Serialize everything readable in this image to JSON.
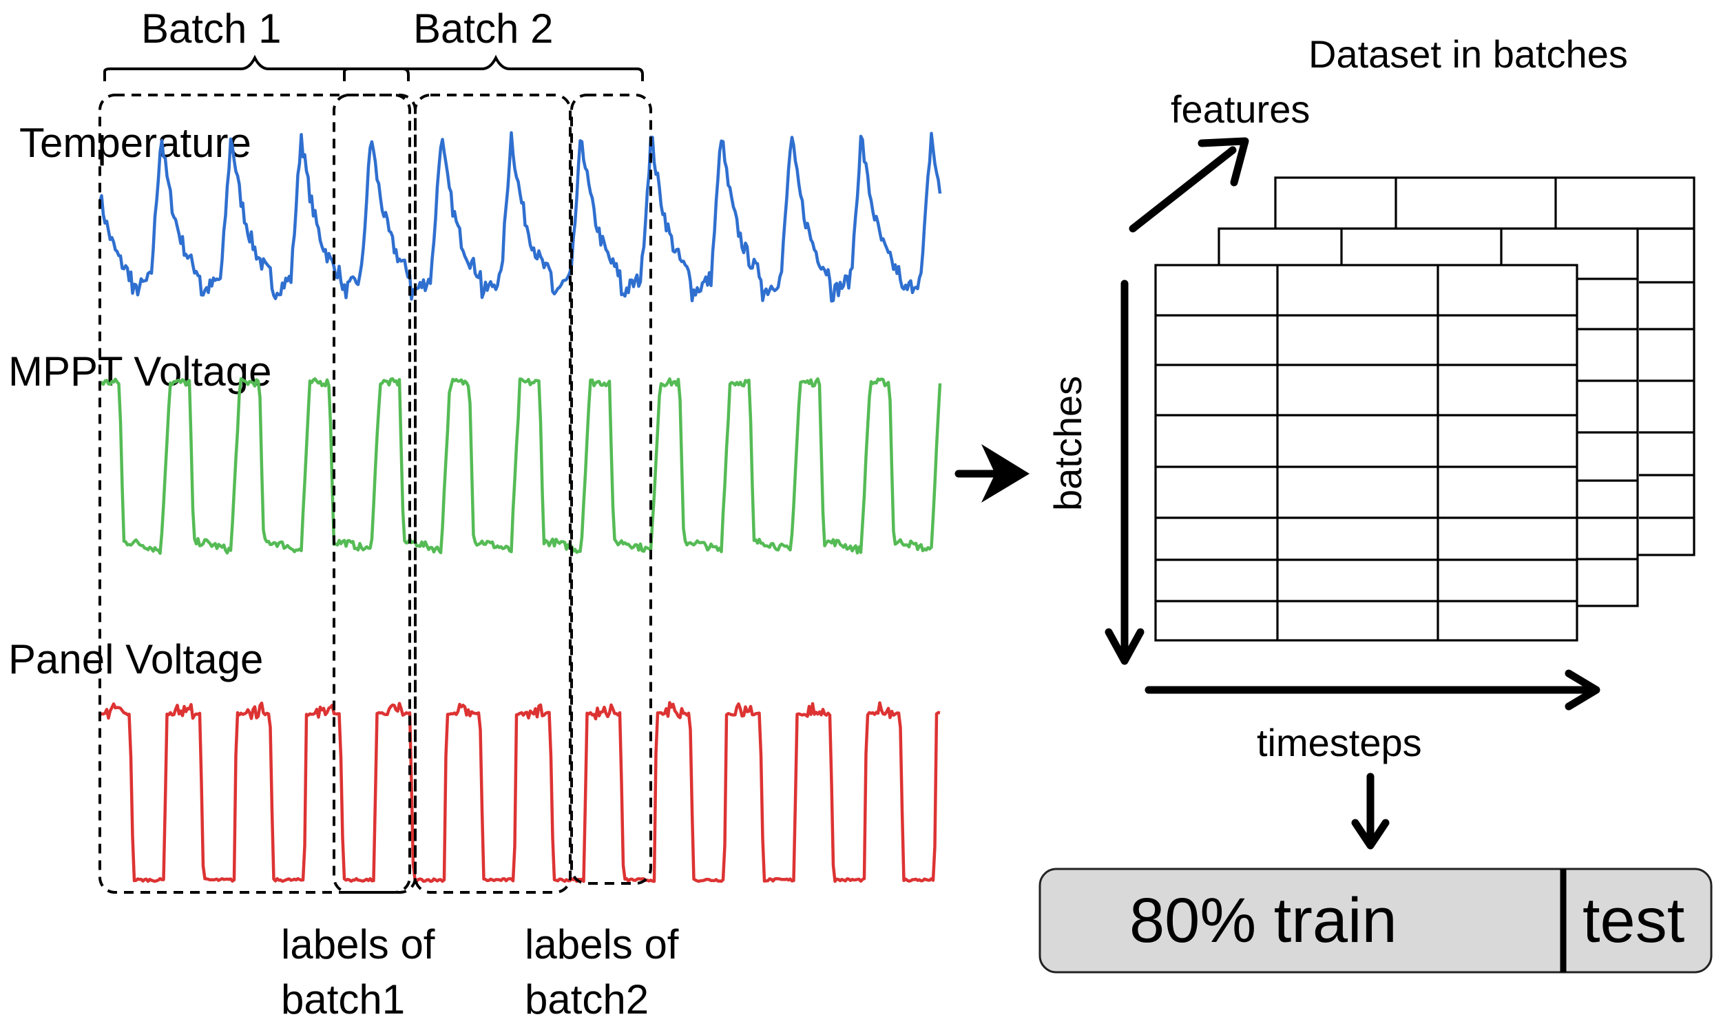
{
  "batch_labels": [
    "Batch 1",
    "Batch 2"
  ],
  "signals": [
    {
      "name": "Temperature",
      "color": "#2f6fcf"
    },
    {
      "name": "MPPT Voltage",
      "color": "#55bb55"
    },
    {
      "name": "Panel Voltage",
      "color": "#dd3333"
    }
  ],
  "labels_of_batch1": [
    "labels of",
    "batch1"
  ],
  "labels_of_batch2": [
    "labels of",
    "batch2"
  ],
  "dataset": {
    "title": "Dataset in batches",
    "features_label": "features",
    "batches_label": "batches",
    "timesteps_label": "timesteps"
  },
  "split": {
    "train_label": "80% train",
    "test_label": "test",
    "fill": "#d9d9d9"
  }
}
